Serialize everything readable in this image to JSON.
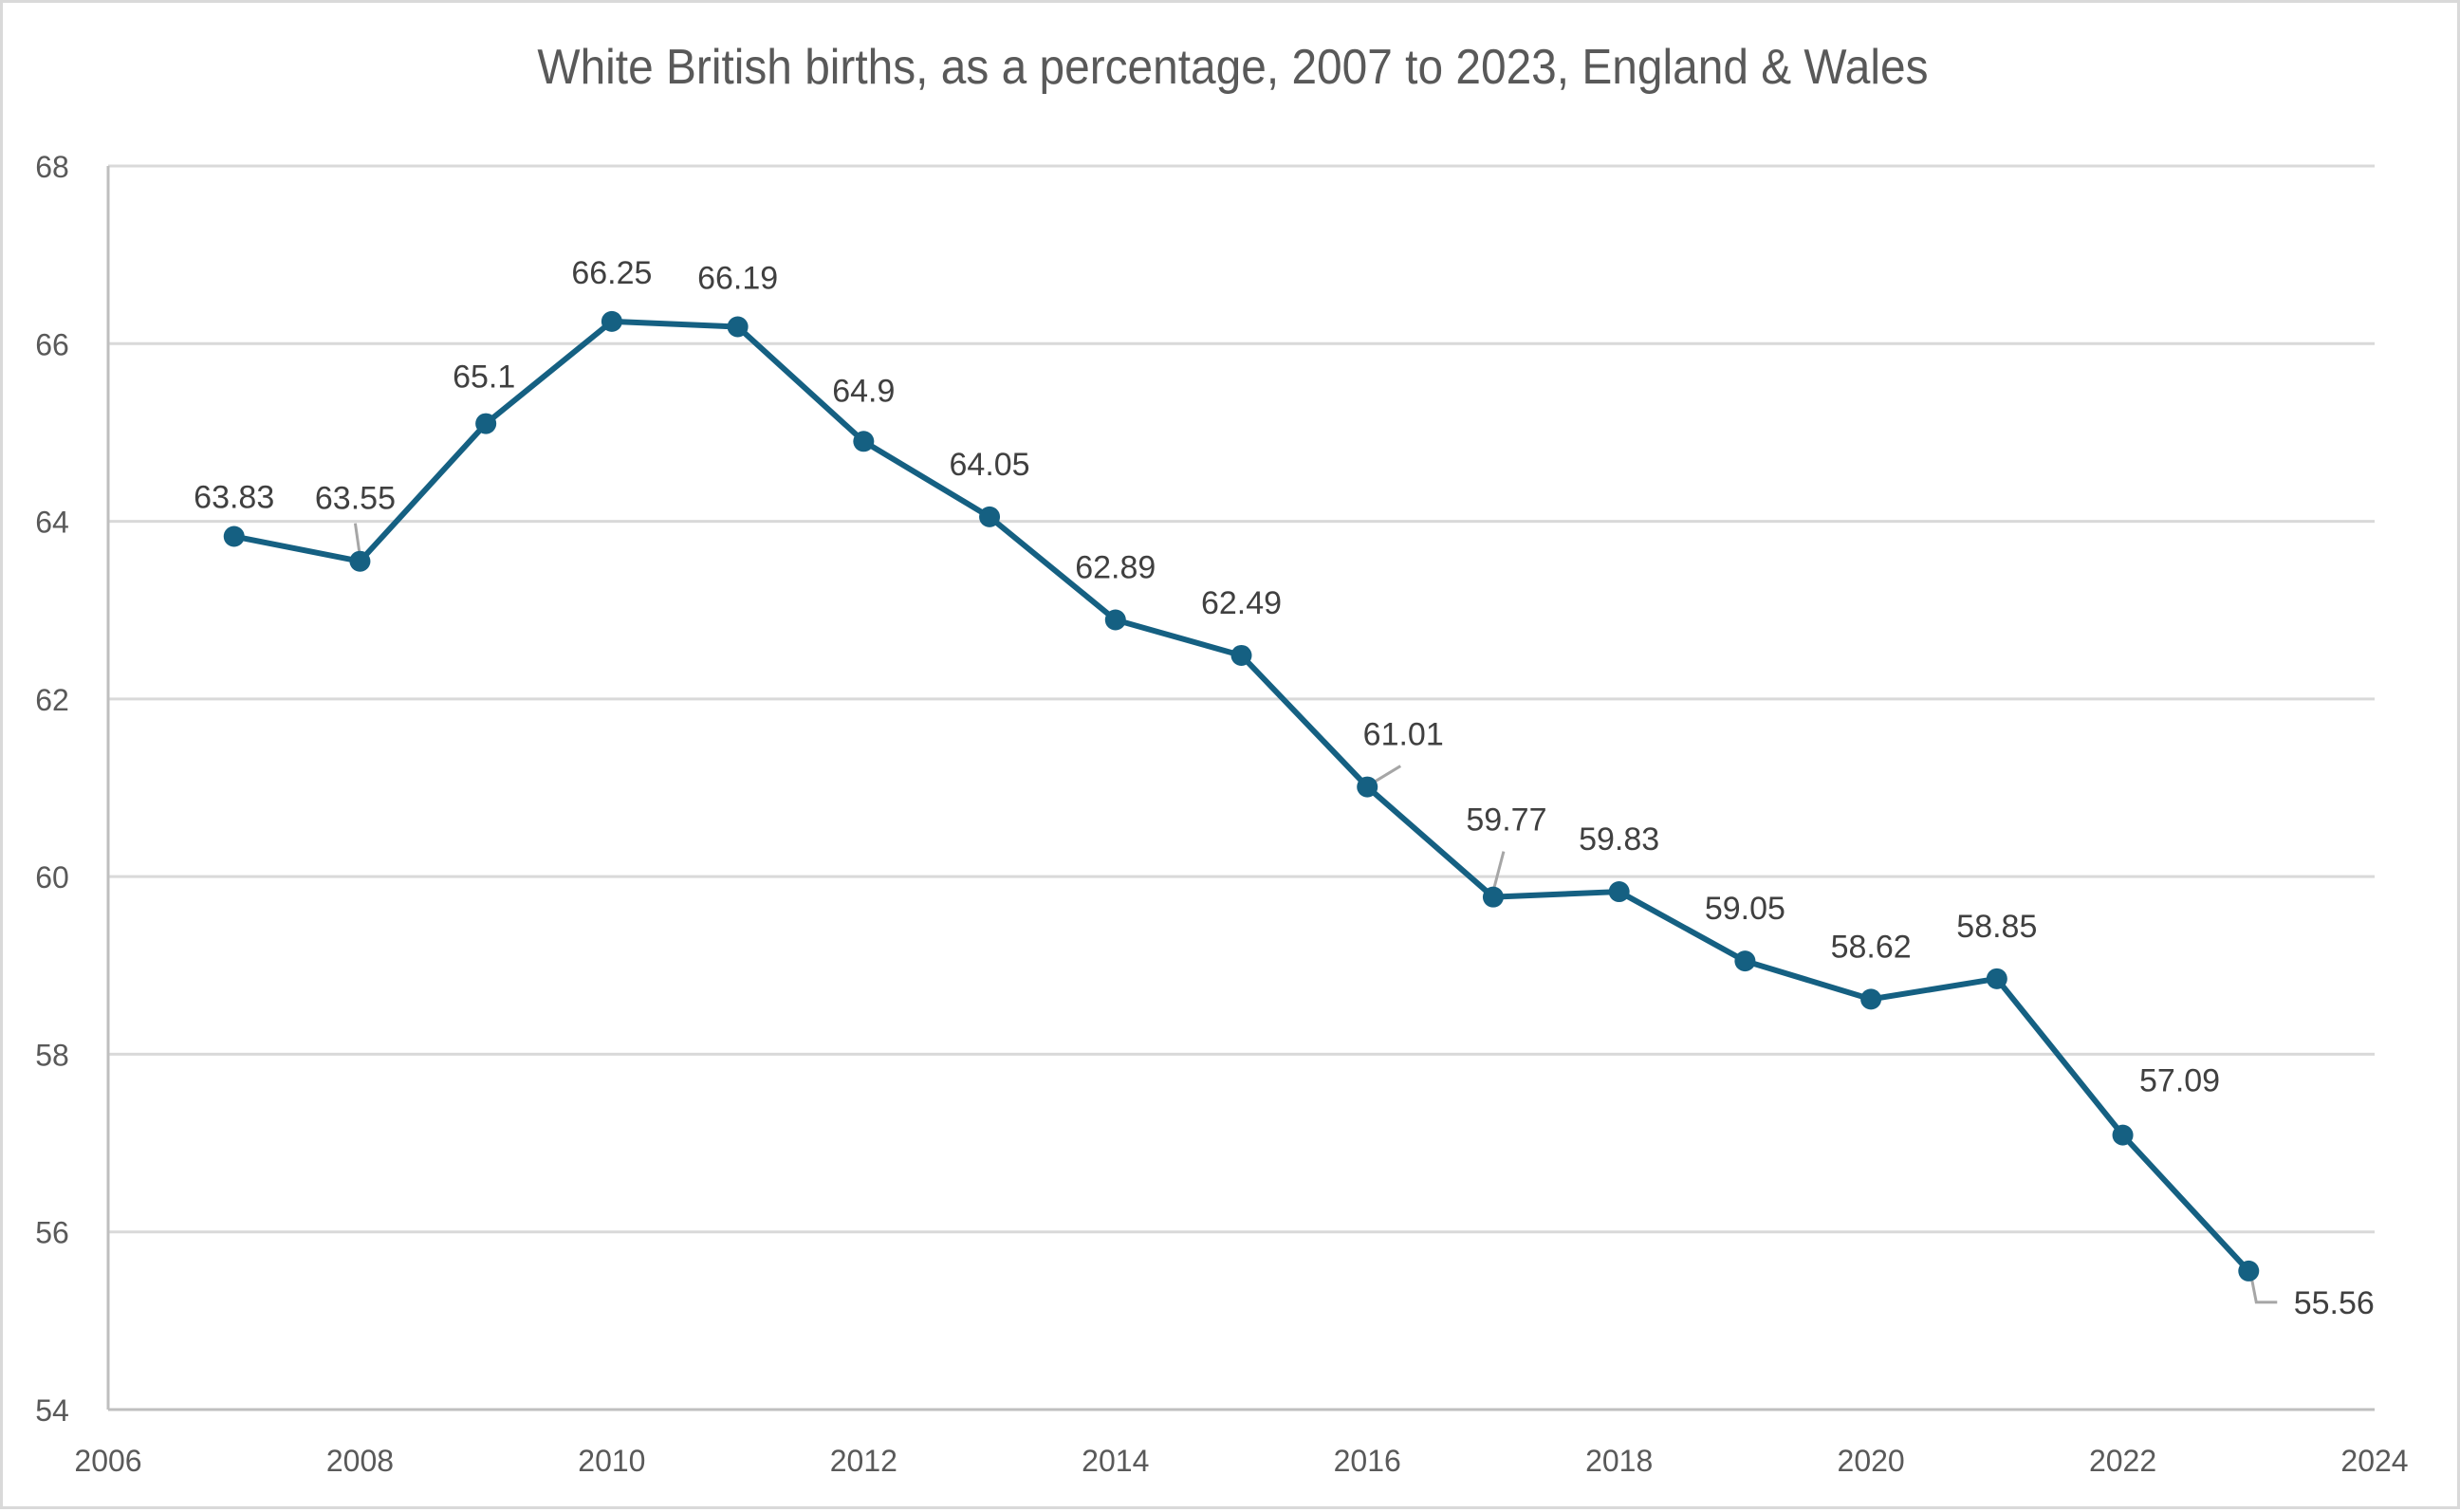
{
  "chart_data": {
    "type": "line",
    "title": "White British births, as a percentage, 2007 to 2023, England & Wales",
    "xlabel": "",
    "ylabel": "",
    "x": [
      2007,
      2008,
      2009,
      2010,
      2011,
      2012,
      2013,
      2014,
      2015,
      2016,
      2017,
      2018,
      2019,
      2020,
      2021,
      2022,
      2023
    ],
    "series": [
      {
        "name": "White British births (%)",
        "values": [
          63.83,
          63.55,
          65.1,
          66.25,
          66.19,
          64.9,
          64.05,
          62.89,
          62.49,
          61.01,
          59.77,
          59.83,
          59.05,
          58.62,
          58.85,
          57.09,
          55.56
        ],
        "data_labels": [
          "63.83",
          "63.55",
          "65.1",
          "66.25",
          "66.19",
          "64.9",
          "64.05",
          "62.89",
          "62.49",
          "61.01",
          "59.77",
          "59.83",
          "59.05",
          "58.62",
          "58.85",
          "57.09",
          "55.56"
        ],
        "color": "#156082",
        "markers": true
      }
    ],
    "xlim": [
      2006,
      2024
    ],
    "ylim": [
      54,
      68
    ],
    "x_ticks": [
      2006,
      2008,
      2010,
      2012,
      2014,
      2016,
      2018,
      2020,
      2022,
      2024
    ],
    "x_tick_labels": [
      "2006",
      "2008",
      "2010",
      "2012",
      "2014",
      "2016",
      "2018",
      "2020",
      "2022",
      "2024"
    ],
    "y_ticks": [
      54,
      56,
      58,
      60,
      62,
      64,
      66,
      68
    ],
    "y_tick_labels": [
      "54",
      "56",
      "58",
      "60",
      "62",
      "64",
      "66",
      "68"
    ],
    "grid": {
      "horizontal": true,
      "vertical": false
    },
    "legend": "none",
    "colors": {
      "line": "#156082",
      "gridline": "#d9d9d9",
      "axis": "#bfbfbf",
      "tick_text": "#595959",
      "label_text": "#404040",
      "leader_line": "#a6a6a6"
    }
  }
}
